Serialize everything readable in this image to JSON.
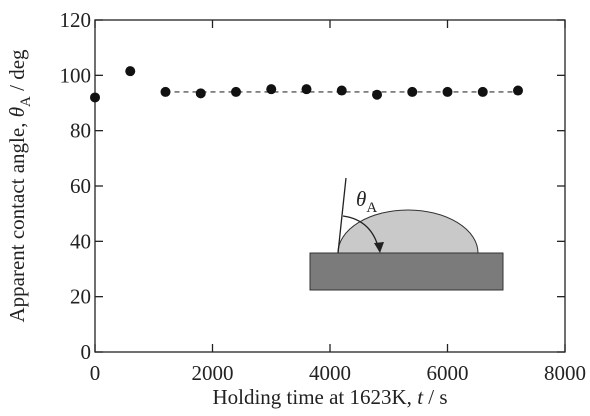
{
  "chart_data": {
    "type": "scatter",
    "x_label": {
      "text": "Holding time at 1623K, ",
      "symbol": "t",
      "unit": " / s"
    },
    "y_label": {
      "text": "Apparent contact angle, ",
      "symbol": "θ",
      "subscript": "A",
      "unit": " / deg"
    },
    "x": [
      0,
      600,
      1200,
      1800,
      2400,
      3000,
      3600,
      4200,
      4800,
      5400,
      6000,
      6600,
      7200
    ],
    "values": [
      92,
      101.5,
      94,
      93.5,
      94,
      95,
      95,
      94.5,
      93,
      94,
      94,
      94,
      94.5
    ],
    "color": "#111111",
    "fit_line": {
      "x": [
        1200,
        7200
      ],
      "values": [
        94,
        94
      ],
      "dashed": true
    },
    "xlim": [
      0,
      8000
    ],
    "ylim": [
      0,
      120
    ],
    "xticks": [
      0,
      2000,
      4000,
      6000,
      8000
    ],
    "yticks": [
      0,
      20,
      40,
      60,
      80,
      100,
      120
    ],
    "inset": {
      "symbol": "θ",
      "subscript": "A"
    }
  }
}
